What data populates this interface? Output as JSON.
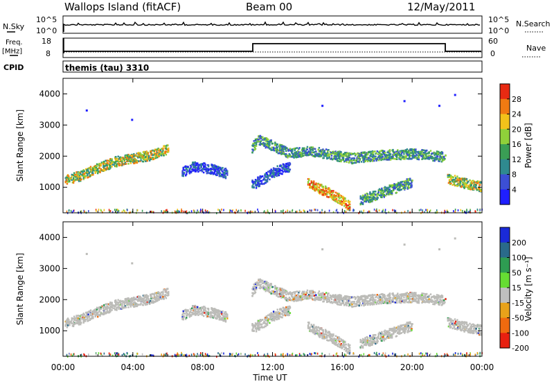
{
  "header": {
    "title": "Wallops Island (fitACF)",
    "beam": "Beam 00",
    "date": "12/May/2011"
  },
  "summary_panels": {
    "nsky_label": "N.Sky",
    "nsky_ticks": [
      "10^5",
      "10^0"
    ],
    "nsearch_label": "N.Search",
    "nsearch_ticks": [
      "10^5",
      "10^0"
    ],
    "freq_label": "Freq.",
    "freq_unit": "[MHz]",
    "freq_ticks": [
      "18",
      "8"
    ],
    "nave_label": "Nave",
    "nave_ticks": [
      "60",
      "0"
    ],
    "cpid_label": "CPID",
    "cpid_value": "themis (tau) 3310"
  },
  "chart_data": [
    {
      "type": "heatmap",
      "panel": "power",
      "ylabel": "Slant Range [km]",
      "xlabel": "",
      "x_ticks": [
        "00:00",
        "04:00",
        "08:00",
        "12:00",
        "16:00",
        "20:00",
        "00:00"
      ],
      "y_ticks": [
        "1000",
        "2000",
        "3000",
        "4000"
      ],
      "xlim_hours": [
        0,
        24
      ],
      "ylim_km": [
        180,
        4500
      ],
      "colorbar": {
        "label": "Power [dB]",
        "ticks": [
          "4",
          "8",
          "12",
          "16",
          "20",
          "24",
          "28"
        ],
        "colors": [
          "#1f1fff",
          "#3c4fd4",
          "#2f8a8f",
          "#3a9e55",
          "#8fd03a",
          "#f2c21a",
          "#f07a12",
          "#e82a12"
        ]
      },
      "echo_bands": [
        {
          "name": "main",
          "points": [
            [
              0.1,
              1250
            ],
            [
              1,
              1400
            ],
            [
              2,
              1650
            ],
            [
              3,
              1850
            ],
            [
              4,
              1950
            ],
            [
              5,
              2050
            ],
            [
              6,
              2250
            ]
          ],
          "level": "high"
        },
        {
          "name": "spread-mid",
          "points": [
            [
              6.8,
              1500
            ],
            [
              7.5,
              1700
            ],
            [
              8.5,
              1600
            ],
            [
              9.4,
              1450
            ]
          ],
          "level": "low"
        },
        {
          "name": "return",
          "points": [
            [
              10.8,
              2300
            ],
            [
              11.2,
              2550
            ],
            [
              12,
              2350
            ],
            [
              13,
              2100
            ],
            [
              14,
              2200
            ],
            [
              15.5,
              2050
            ],
            [
              16.5,
              1950
            ],
            [
              18,
              2050
            ],
            [
              20,
              2100
            ],
            [
              21.9,
              2000
            ]
          ],
          "level": "mid"
        },
        {
          "name": "descending",
          "points": [
            [
              14,
              1150
            ],
            [
              15,
              900
            ],
            [
              16,
              600
            ],
            [
              16.4,
              400
            ]
          ],
          "level": "peak"
        },
        {
          "name": "ascending",
          "points": [
            [
              17,
              600
            ],
            [
              18,
              800
            ],
            [
              19,
              1000
            ],
            [
              20,
              1200
            ]
          ],
          "level": "mid"
        },
        {
          "name": "late",
          "points": [
            [
              22,
              1300
            ],
            [
              23,
              1150
            ],
            [
              23.9,
              1050
            ]
          ],
          "level": "high"
        },
        {
          "name": "arc",
          "points": [
            [
              10.8,
              1100
            ],
            [
              11.5,
              1300
            ],
            [
              12,
              1500
            ],
            [
              13,
              1700
            ]
          ],
          "level": "low"
        }
      ]
    },
    {
      "type": "heatmap",
      "panel": "velocity",
      "ylabel": "Slant Range [km]",
      "xlabel": "Time UT",
      "x_ticks": [
        "00:00",
        "04:00",
        "08:00",
        "12:00",
        "16:00",
        "20:00",
        "00:00"
      ],
      "y_ticks": [
        "1000",
        "2000",
        "3000",
        "4000"
      ],
      "xlim_hours": [
        0,
        24
      ],
      "ylim_km": [
        180,
        4500
      ],
      "colorbar": {
        "label": "Velocity [m s⁻¹]",
        "ticks": [
          "200",
          "100",
          "50",
          "15",
          "-15",
          "-50",
          "-100",
          "-200"
        ],
        "colors": [
          "#1a2ad8",
          "#2a6a8a",
          "#2e9c52",
          "#66dd33",
          "#bfbfbf",
          "#e8a21a",
          "#f06a0f",
          "#e82010"
        ],
        "dominant": "#bcbcb8"
      }
    }
  ]
}
